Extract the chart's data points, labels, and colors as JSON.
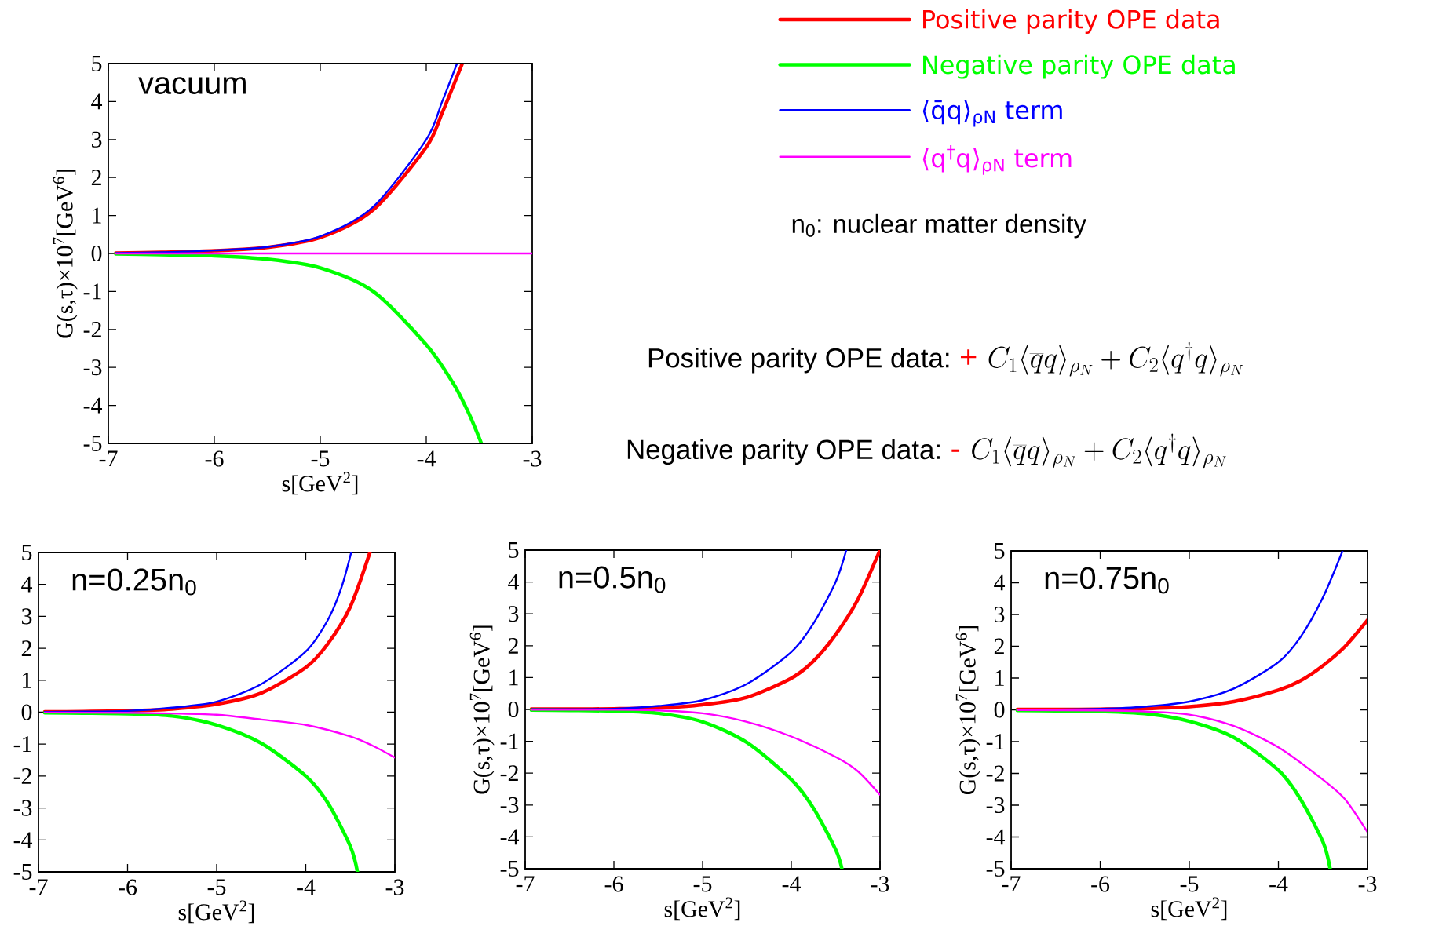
{
  "chart_data": [
    {
      "type": "line",
      "title": "vacuum",
      "xlabel": "s[GeV$^{2}$]",
      "ylabel": "G(s,τ)×10$^{7}$[GeV$^{6}$]",
      "xlim": [
        -7,
        -3
      ],
      "ylim": [
        -5,
        5
      ],
      "xticks": [
        -7,
        -6,
        -5,
        -4,
        -3
      ],
      "yticks": [
        -5,
        -4,
        -3,
        -2,
        -1,
        0,
        1,
        2,
        3,
        4,
        5
      ],
      "legend": "top right",
      "annotations": [
        "n$_{0}$: nuclear matter density",
        "Positive parity OPE data:",
        "+",
        "C_1\\langle\\overline{q}q\\rangle_{\\rho_N}+C_2\\langle q^{\\dagger}q\\rangle_{\\rho_N}",
        "Negative parity OPE data:",
        "-",
        "C_1\\langle\\overline{q}q\\rangle_{\\rho_N}+C_2\\langle q^{\\dagger}q\\rangle_{\\rho_N}"
      ],
      "series": [
        {
          "name": "Positive parity OPE data",
          "color": "#ff0000",
          "x": [
            -6.93,
            -6.5,
            -6,
            -5.5,
            -5,
            -4.5,
            -4,
            -3.85,
            -3.66
          ],
          "values": [
            0.01,
            0.03,
            0.07,
            0.16,
            0.42,
            1.15,
            2.8,
            3.7,
            5
          ]
        },
        {
          "name": "Negative parity OPE data",
          "color": "#00ff00",
          "x": [
            -6.93,
            -6.5,
            -6,
            -5.5,
            -5,
            -4.5,
            -4,
            -3.75,
            -3.6,
            -3.48
          ],
          "values": [
            -0.01,
            -0.03,
            -0.06,
            -0.15,
            -0.38,
            -1.0,
            -2.4,
            -3.4,
            -4.2,
            -5
          ]
        },
        {
          "name": "⟨q̄q⟩$_{ρN}$ term",
          "color": "#0000ff",
          "x": [
            -6.93,
            -6.5,
            -6,
            -5.5,
            -5,
            -4.5,
            -4,
            -3.85,
            -3.71
          ],
          "values": [
            0.01,
            0.03,
            0.08,
            0.17,
            0.45,
            1.23,
            3.0,
            4.0,
            5
          ]
        },
        {
          "name": "⟨q$^{†}$q⟩$_{ρN}$ term",
          "color": "#ff00ff",
          "x": [
            -6.93,
            -3
          ],
          "values": [
            0,
            0
          ]
        }
      ]
    },
    {
      "type": "line",
      "title": "n=0.25n$_{0}$",
      "xlabel": "s[GeV$^{2}$]",
      "xlim": [
        -7,
        -3
      ],
      "ylim": [
        -5,
        5
      ],
      "xticks": [
        -7,
        -6,
        -5,
        -4,
        -3
      ],
      "yticks": [
        -5,
        -4,
        -3,
        -2,
        -1,
        0,
        1,
        2,
        3,
        4,
        5
      ],
      "series": [
        {
          "color": "#ff0000",
          "x": [
            -6.93,
            -6.5,
            -6,
            -5.5,
            -5,
            -4.5,
            -4,
            -3.75,
            -3.5,
            -3.28
          ],
          "values": [
            0.01,
            0.02,
            0.04,
            0.1,
            0.25,
            0.6,
            1.4,
            2.15,
            3.3,
            5
          ]
        },
        {
          "color": "#00ff00",
          "x": [
            -6.93,
            -6.5,
            -6,
            -5.5,
            -5,
            -4.5,
            -4,
            -3.75,
            -3.5,
            -3.42
          ],
          "values": [
            -0.02,
            -0.03,
            -0.05,
            -0.12,
            -0.4,
            -0.97,
            -2.0,
            -2.85,
            -4.2,
            -5
          ]
        },
        {
          "color": "#0000ff",
          "x": [
            -6.93,
            -6.5,
            -6,
            -5.5,
            -5,
            -4.5,
            -4,
            -3.75,
            -3.6,
            -3.49
          ],
          "values": [
            0.01,
            0.02,
            0.04,
            0.14,
            0.33,
            0.88,
            1.9,
            2.9,
            3.9,
            5
          ]
        },
        {
          "color": "#ff00ff",
          "x": [
            -6.93,
            -6,
            -5.5,
            -5,
            -4.5,
            -4,
            -3.5,
            -3.25,
            -3
          ],
          "values": [
            -0.01,
            -0.02,
            -0.04,
            -0.08,
            -0.23,
            -0.4,
            -0.76,
            -1.05,
            -1.42
          ]
        }
      ]
    },
    {
      "type": "line",
      "title": "n=0.5n$_{0}$",
      "xlabel": "s[GeV$^{2}$]",
      "ylabel": "G(s,τ)×10$^{7}$[GeV$^{6}$]",
      "xlim": [
        -7,
        -3
      ],
      "ylim": [
        -5,
        5
      ],
      "xticks": [
        -7,
        -6,
        -5,
        -4,
        -3
      ],
      "yticks": [
        -5,
        -4,
        -3,
        -2,
        -1,
        0,
        1,
        2,
        3,
        4,
        5
      ],
      "series": [
        {
          "color": "#ff0000",
          "x": [
            -6.93,
            -6.5,
            -6,
            -5.5,
            -5,
            -4.5,
            -4,
            -3.75,
            -3.5,
            -3.25,
            -3
          ],
          "values": [
            0.01,
            0.01,
            0.02,
            0.05,
            0.15,
            0.38,
            0.98,
            1.52,
            2.35,
            3.45,
            5
          ]
        },
        {
          "color": "#00ff00",
          "x": [
            -6.93,
            -6.5,
            -6,
            -5.5,
            -5,
            -4.5,
            -4,
            -3.75,
            -3.5,
            -3.43
          ],
          "values": [
            -0.02,
            -0.03,
            -0.05,
            -0.12,
            -0.39,
            -1.04,
            -2.2,
            -3.1,
            -4.4,
            -5
          ]
        },
        {
          "color": "#0000ff",
          "x": [
            -6.93,
            -6.5,
            -6,
            -5.5,
            -5,
            -4.5,
            -4,
            -3.75,
            -3.5,
            -3.38
          ],
          "values": [
            0.01,
            0.01,
            0.02,
            0.11,
            0.29,
            0.8,
            1.8,
            2.7,
            4.0,
            5
          ]
        },
        {
          "color": "#ff00ff",
          "x": [
            -6.93,
            -6,
            -5.5,
            -5,
            -4.5,
            -4,
            -3.5,
            -3.25,
            -3
          ],
          "values": [
            -0.01,
            -0.01,
            -0.03,
            -0.12,
            -0.39,
            -0.85,
            -1.49,
            -1.94,
            -2.68
          ]
        }
      ]
    },
    {
      "type": "line",
      "title": "n=0.75n$_{0}$",
      "xlabel": "s[GeV$^{2}$]",
      "ylabel": "G(s,τ)×10$^{7}$[GeV$^{6}$]",
      "xlim": [
        -7,
        -3
      ],
      "ylim": [
        -5,
        5
      ],
      "xticks": [
        -7,
        -6,
        -5,
        -4,
        -3
      ],
      "yticks": [
        -5,
        -4,
        -3,
        -2,
        -1,
        0,
        1,
        2,
        3,
        4,
        5
      ],
      "series": [
        {
          "color": "#ff0000",
          "x": [
            -6.93,
            -6.5,
            -6,
            -5.5,
            -5,
            -4.5,
            -4,
            -3.75,
            -3.5,
            -3.25,
            -3
          ],
          "values": [
            0.01,
            0.01,
            0.02,
            0.04,
            0.1,
            0.26,
            0.62,
            0.92,
            1.39,
            2.0,
            2.82
          ]
        },
        {
          "color": "#00ff00",
          "x": [
            -6.93,
            -6.5,
            -6,
            -5.5,
            -5,
            -4.5,
            -4,
            -3.75,
            -3.5,
            -3.42
          ],
          "values": [
            -0.02,
            -0.03,
            -0.05,
            -0.12,
            -0.36,
            -0.87,
            -1.9,
            -2.82,
            -4.16,
            -5
          ]
        },
        {
          "color": "#0000ff",
          "x": [
            -6.93,
            -6.5,
            -6,
            -5.5,
            -5,
            -4.5,
            -4,
            -3.75,
            -3.5,
            -3.28
          ],
          "values": [
            0.01,
            0.01,
            0.03,
            0.1,
            0.26,
            0.67,
            1.5,
            2.3,
            3.54,
            5
          ]
        },
        {
          "color": "#ff00ff",
          "x": [
            -6.93,
            -6,
            -5.5,
            -5,
            -4.5,
            -4,
            -3.5,
            -3.25,
            -3
          ],
          "values": [
            -0.01,
            -0.02,
            -0.05,
            -0.15,
            -0.51,
            -1.18,
            -2.2,
            -2.82,
            -3.85
          ]
        }
      ]
    }
  ]
}
